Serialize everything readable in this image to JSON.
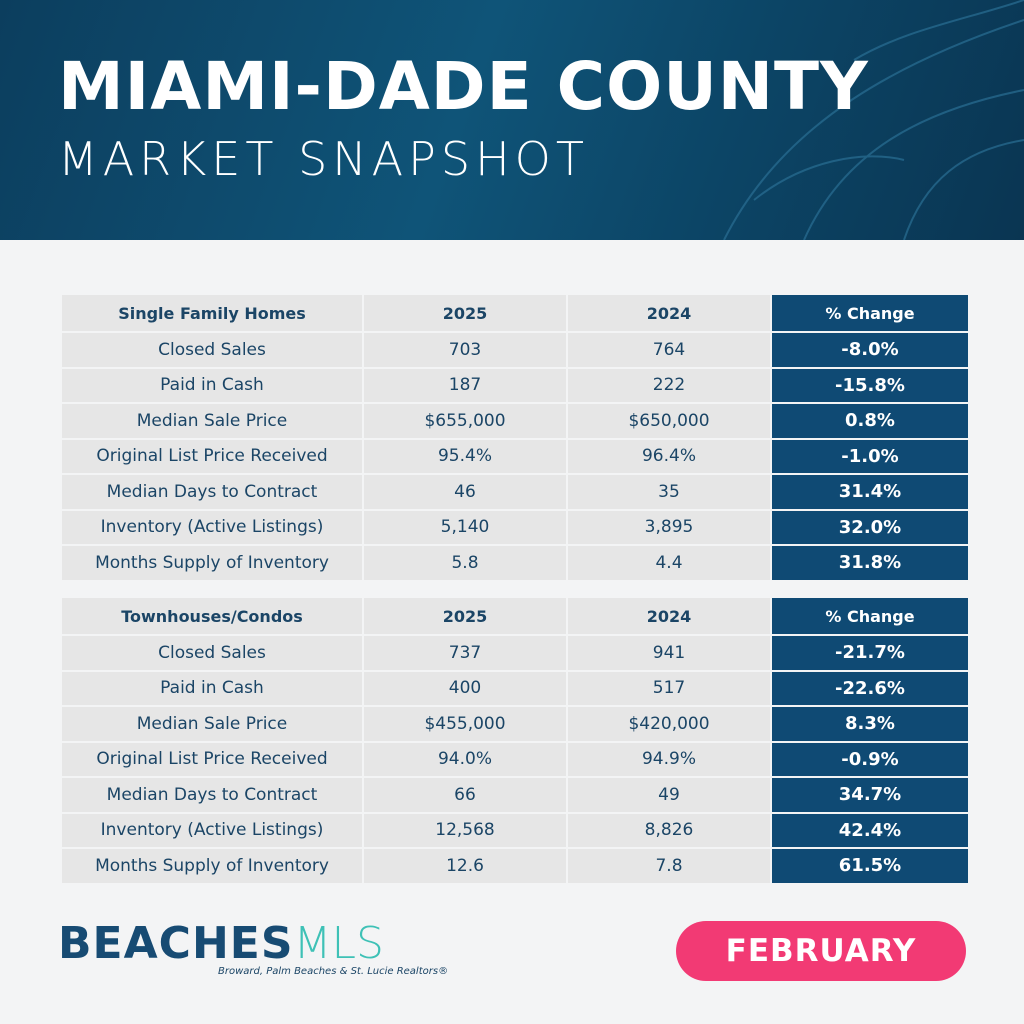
{
  "header": {
    "title": "MIAMI-DADE COUNTY",
    "subtitle": "MARKET SNAPSHOT"
  },
  "tables": [
    {
      "headers": [
        "Single Family Homes",
        "2025",
        "2024",
        "% Change"
      ],
      "rows": [
        [
          "Closed Sales",
          "703",
          "764",
          "-8.0%"
        ],
        [
          "Paid in Cash",
          "187",
          "222",
          "-15.8%"
        ],
        [
          "Median Sale Price",
          "$655,000",
          "$650,000",
          "0.8%"
        ],
        [
          "Original List Price Received",
          "95.4%",
          "96.4%",
          "-1.0%"
        ],
        [
          "Median Days to Contract",
          "46",
          "35",
          "31.4%"
        ],
        [
          "Inventory (Active Listings)",
          "5,140",
          "3,895",
          "32.0%"
        ],
        [
          "Months Supply of Inventory",
          "5.8",
          "4.4",
          "31.8%"
        ]
      ]
    },
    {
      "headers": [
        "Townhouses/Condos",
        "2025",
        "2024",
        "% Change"
      ],
      "rows": [
        [
          "Closed Sales",
          "737",
          "941",
          "-21.7%"
        ],
        [
          "Paid in Cash",
          "400",
          "517",
          "-22.6%"
        ],
        [
          "Median Sale Price",
          "$455,000",
          "$420,000",
          "8.3%"
        ],
        [
          "Original List Price Received",
          "94.0%",
          "94.9%",
          "-0.9%"
        ],
        [
          "Median Days to Contract",
          "66",
          "49",
          "34.7%"
        ],
        [
          "Inventory (Active Listings)",
          "12,568",
          "8,826",
          "42.4%"
        ],
        [
          "Months Supply of Inventory",
          "12.6",
          "7.8",
          "61.5%"
        ]
      ]
    }
  ],
  "footer": {
    "logo_bold": "BEACHES",
    "logo_light": "MLS",
    "tagline": "Broward, Palm Beaches & St. Lucie Realtors®",
    "month": "FEBRUARY"
  },
  "colors": {
    "header_bg": "#0f5478",
    "pct_bg": "#0f4a74",
    "text": "#1b4566",
    "month_pill": "#f23a74",
    "logo_accent": "#3ec1b6"
  }
}
